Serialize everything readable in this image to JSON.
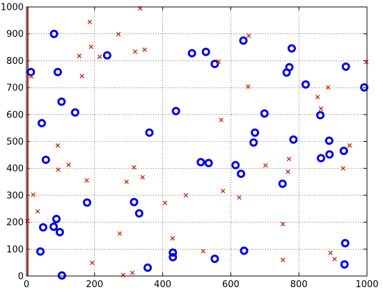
{
  "chart_data": {
    "type": "scatter",
    "title": "",
    "xlabel": "",
    "ylabel": "",
    "xlim": [
      0,
      1000
    ],
    "ylim": [
      0,
      1000
    ],
    "xticks": [
      0,
      200,
      400,
      600,
      800,
      1000
    ],
    "yticks": [
      0,
      100,
      200,
      300,
      400,
      500,
      600,
      700,
      800,
      900,
      1000
    ],
    "grid": true,
    "legend": "none",
    "series": [
      {
        "marker": "circle",
        "color": "#0000ee",
        "points": [
          [
            81,
            900
          ],
          [
            13,
            758
          ],
          [
            92,
            758
          ],
          [
            103,
            648
          ],
          [
            143,
            608
          ],
          [
            45,
            568
          ],
          [
            57,
            432
          ],
          [
            237,
            820
          ],
          [
            361,
            533
          ],
          [
            178,
            273
          ],
          [
            316,
            275
          ],
          [
            331,
            233
          ],
          [
            88,
            212
          ],
          [
            49,
            181
          ],
          [
            80,
            183
          ],
          [
            98,
            163
          ],
          [
            41,
            91
          ],
          [
            104,
            2
          ],
          [
            356,
            31
          ],
          [
            430,
            87
          ],
          [
            430,
            70
          ],
          [
            439,
            613
          ],
          [
            486,
            828
          ],
          [
            527,
            833
          ],
          [
            553,
            788
          ],
          [
            637,
            875
          ],
          [
            779,
            846
          ],
          [
            820,
            712
          ],
          [
            699,
            604
          ],
          [
            772,
            776
          ],
          [
            764,
            756
          ],
          [
            938,
            778
          ],
          [
            992,
            701
          ],
          [
            863,
            598
          ],
          [
            671,
            533
          ],
          [
            667,
            496
          ],
          [
            784,
            507
          ],
          [
            889,
            503
          ],
          [
            890,
            452
          ],
          [
            932,
            465
          ],
          [
            865,
            438
          ],
          [
            512,
            423
          ],
          [
            535,
            420
          ],
          [
            614,
            412
          ],
          [
            630,
            380
          ],
          [
            752,
            343
          ],
          [
            639,
            94
          ],
          [
            553,
            64
          ],
          [
            936,
            122
          ],
          [
            934,
            43
          ]
        ]
      },
      {
        "marker": "x",
        "color": "#cc2200",
        "points": [
          [
            3,
            205
          ],
          [
            20,
            302
          ],
          [
            33,
            240
          ],
          [
            14,
            742
          ],
          [
            186,
            944
          ],
          [
            190,
            852
          ],
          [
            155,
            818
          ],
          [
            163,
            743
          ],
          [
            92,
            485
          ],
          [
            124,
            413
          ],
          [
            93,
            395
          ],
          [
            177,
            355
          ],
          [
            215,
            815
          ],
          [
            270,
            899
          ],
          [
            334,
            995
          ],
          [
            319,
            834
          ],
          [
            347,
            841
          ],
          [
            316,
            404
          ],
          [
            294,
            350
          ],
          [
            341,
            367
          ],
          [
            407,
            272
          ],
          [
            468,
            300
          ],
          [
            572,
            580
          ],
          [
            577,
            316
          ],
          [
            564,
            797
          ],
          [
            653,
            893
          ],
          [
            651,
            704
          ],
          [
            625,
            292
          ],
          [
            702,
            411
          ],
          [
            771,
            435
          ],
          [
            768,
            388
          ],
          [
            855,
            665
          ],
          [
            865,
            622
          ],
          [
            886,
            701
          ],
          [
            949,
            485
          ],
          [
            930,
            400
          ],
          [
            998,
            795
          ],
          [
            753,
            193
          ],
          [
            753,
            60
          ],
          [
            893,
            86
          ],
          [
            905,
            63
          ],
          [
            429,
            140
          ],
          [
            519,
            92
          ],
          [
            193,
            49
          ],
          [
            274,
            158
          ],
          [
            284,
            4
          ],
          [
            311,
            12
          ]
        ]
      }
    ]
  }
}
